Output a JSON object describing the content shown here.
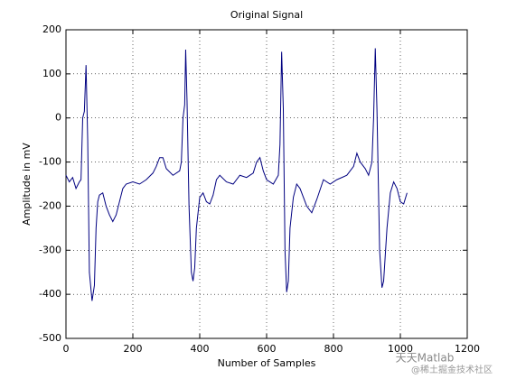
{
  "chart_data": {
    "type": "line",
    "title": "Original Signal",
    "xlabel": "Number of Samples",
    "ylabel": "Amplitude in mV",
    "x": [
      0,
      10,
      20,
      30,
      40,
      45,
      50,
      55,
      60,
      65,
      70,
      78,
      85,
      90,
      95,
      100,
      110,
      120,
      130,
      140,
      150,
      160,
      170,
      180,
      200,
      220,
      240,
      260,
      270,
      280,
      290,
      300,
      320,
      340,
      345,
      350,
      355,
      358,
      362,
      368,
      375,
      380,
      385,
      390,
      400,
      410,
      420,
      430,
      440,
      450,
      460,
      480,
      500,
      520,
      540,
      560,
      570,
      580,
      590,
      600,
      620,
      635,
      640,
      645,
      650,
      655,
      660,
      665,
      670,
      680,
      690,
      700,
      720,
      735,
      750,
      770,
      790,
      810,
      840,
      860,
      870,
      880,
      895,
      905,
      915,
      920,
      925,
      930,
      938,
      945,
      950,
      960,
      970,
      980,
      990,
      1000,
      1010,
      1020
    ],
    "values": [
      -130,
      -145,
      -135,
      -160,
      -145,
      -140,
      0,
      15,
      120,
      -50,
      -350,
      -415,
      -380,
      -250,
      -190,
      -175,
      -170,
      -200,
      -220,
      -235,
      -220,
      -190,
      -160,
      -150,
      -145,
      -150,
      -140,
      -125,
      -110,
      -90,
      -90,
      -115,
      -130,
      -120,
      -100,
      0,
      30,
      155,
      40,
      -200,
      -350,
      -370,
      -340,
      -250,
      -180,
      -170,
      -190,
      -195,
      -175,
      -140,
      -130,
      -145,
      -150,
      -130,
      -135,
      -125,
      -100,
      -90,
      -120,
      -140,
      -150,
      -130,
      -60,
      150,
      20,
      -300,
      -395,
      -370,
      -250,
      -180,
      -150,
      -160,
      -200,
      -215,
      -185,
      -140,
      -150,
      -140,
      -130,
      -110,
      -80,
      -100,
      -115,
      -130,
      -100,
      0,
      158,
      20,
      -300,
      -385,
      -370,
      -250,
      -170,
      -145,
      -160,
      -190,
      -195,
      -170
    ],
    "color": "#000080",
    "xlim": [
      0,
      1200
    ],
    "xticks": [
      0,
      200,
      400,
      600,
      800,
      1000,
      1200
    ],
    "ylim": [
      -500,
      200
    ],
    "yticks": [
      -500,
      -400,
      -300,
      -200,
      -100,
      0,
      100,
      200
    ],
    "grid": true
  },
  "watermark": [
    "天天Matlab",
    "@稀土掘金技术社区"
  ]
}
